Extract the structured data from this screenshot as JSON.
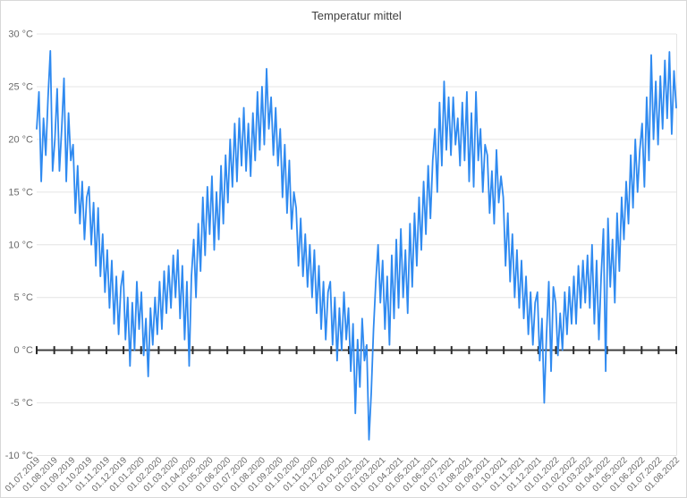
{
  "window": {
    "background": "#ffffff"
  },
  "chart_data": {
    "type": "line",
    "title": "Temperatur mittel",
    "xlabel": "",
    "ylabel": "",
    "unit": "°C",
    "x_start": "01.07.2019",
    "x_end": "01.08.2022",
    "sample_interval_days": 4,
    "ylim": [
      -10,
      30
    ],
    "grid": true,
    "legend": "none",
    "y_ticks": [
      30,
      25,
      20,
      15,
      10,
      5,
      0,
      -5,
      -10
    ],
    "y_tick_labels": [
      "30 °C",
      "25 °C",
      "20 °C",
      "15 °C",
      "10 °C",
      "5 °C",
      "0 °C",
      "-5 °C",
      "-10 °C"
    ],
    "x_tick_labels": [
      "01.07.2019",
      "01.08.2019",
      "01.09.2019",
      "01.10.2019",
      "01.11.2019",
      "01.12.2019",
      "01.01.2020",
      "01.02.2020",
      "01.03.2020",
      "01.04.2020",
      "01.05.2020",
      "01.06.2020",
      "01.07.2020",
      "01.08.2020",
      "01.09.2020",
      "01.10.2020",
      "01.11.2020",
      "01.12.2020",
      "01.01.2021",
      "01.02.2021",
      "01.03.2021",
      "01.04.2021",
      "01.05.2021",
      "01.06.2021",
      "01.07.2021",
      "01.08.2021",
      "01.09.2021",
      "01.10.2021",
      "01.11.2021",
      "01.12.2021",
      "01.01.2022",
      "01.02.2022",
      "01.03.2022",
      "01.04.2022",
      "01.05.2022",
      "01.06.2022",
      "01.07.2022",
      "01.08.2022"
    ],
    "series": [
      {
        "name": "Temperatur mittel",
        "values": [
          21,
          24.5,
          16,
          22,
          18.5,
          24,
          28.4,
          17,
          20,
          24.8,
          17,
          21,
          25.8,
          16,
          22.5,
          18,
          19.5,
          13,
          17.5,
          12,
          16,
          10.5,
          14.5,
          15.5,
          10,
          14,
          8,
          13.5,
          7,
          11,
          5.5,
          9.5,
          4,
          8.5,
          2.5,
          7,
          1.5,
          6,
          7.5,
          1,
          5,
          -1.5,
          4.5,
          0,
          6.5,
          2,
          5.5,
          -0.5,
          3,
          -2.5,
          4,
          0.5,
          5,
          1.5,
          6.5,
          2,
          7.5,
          3.5,
          8,
          4,
          9,
          5,
          9.5,
          3,
          8,
          1,
          6.5,
          -1.5,
          7,
          10.5,
          5,
          12,
          7.5,
          14.5,
          9,
          15.5,
          11,
          16.5,
          9.5,
          15,
          10.5,
          17.5,
          12,
          18.5,
          14,
          20,
          15.5,
          21.5,
          16,
          22,
          17.5,
          23,
          17,
          21.5,
          16.5,
          22.5,
          18,
          24.5,
          19,
          25,
          19.5,
          26.7,
          21,
          24,
          18.5,
          23,
          17.5,
          21,
          14.5,
          19.5,
          13,
          18,
          11.5,
          15,
          13.5,
          8,
          12.5,
          7,
          11,
          6,
          10,
          5,
          9.5,
          3.5,
          8,
          2,
          6.5,
          1,
          5.5,
          6.5,
          0.5,
          5,
          -1,
          4,
          0,
          5.5,
          1,
          4,
          -2,
          2.5,
          -6,
          1,
          -3.5,
          3,
          -1,
          0.5,
          -8.5,
          -4,
          2,
          6.5,
          10,
          4.5,
          8.5,
          2,
          7,
          0.5,
          9,
          3,
          10.5,
          4,
          11.5,
          5,
          9.5,
          3.5,
          12,
          6,
          13,
          8,
          14.5,
          9.5,
          16,
          11,
          17.5,
          12.5,
          18,
          21,
          15,
          23.5,
          17.5,
          25.5,
          19,
          24,
          18.5,
          24,
          19.5,
          22,
          17.5,
          23.5,
          18,
          24.5,
          16,
          22.5,
          15.5,
          24.5,
          18,
          21,
          15,
          19.5,
          18.5,
          13,
          17,
          12,
          19,
          14,
          16.5,
          14.5,
          8,
          13,
          6.5,
          11,
          5,
          9.5,
          4,
          8.5,
          3,
          7,
          1.5,
          5.5,
          0.5,
          4.5,
          5.5,
          -1,
          3,
          -5,
          1.5,
          6.5,
          -2,
          6,
          4.5,
          -0.5,
          3.5,
          0,
          5.5,
          1.5,
          6,
          2.5,
          7,
          2.5,
          8,
          4,
          8.5,
          4.5,
          9,
          4,
          10,
          2.5,
          8.5,
          1,
          7,
          11.5,
          -2,
          12.5,
          6,
          10.5,
          4.5,
          13,
          7.5,
          14.5,
          10.5,
          16,
          12,
          18.5,
          13.5,
          20,
          15,
          19,
          21.5,
          15.5,
          24,
          18,
          28,
          20,
          25.5,
          19.5,
          26,
          21,
          27.5,
          22,
          28.3,
          20.5,
          26.5,
          23
        ]
      }
    ]
  },
  "colors": {
    "line": "#2f8af0",
    "grid": "#e4e4e4",
    "zero_axis": "#404040",
    "axis_tick": "#2b2b2b",
    "title_text": "#3f3f3f",
    "label_text": "#6b6b6b",
    "border": "#d8d8d8"
  }
}
